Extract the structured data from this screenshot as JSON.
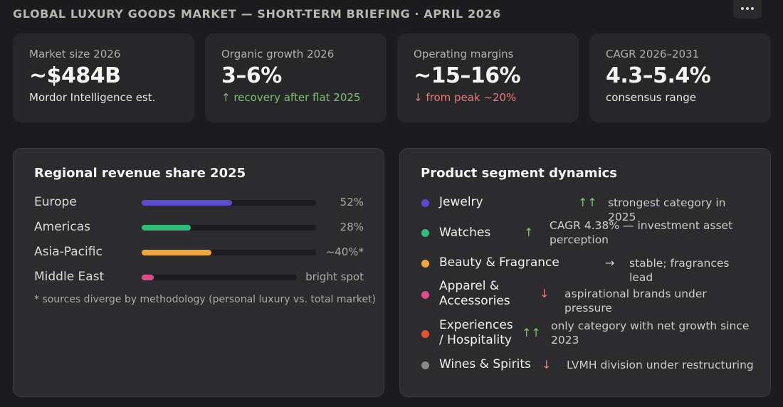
{
  "header": {
    "title": "GLOBAL LUXURY GOODS MARKET — SHORT-TERM BRIEFING · APRIL 2026",
    "more_icon": "ellipsis-icon"
  },
  "kpis": [
    {
      "label": "Market size 2026",
      "value": "~$484B",
      "note": "Mordor Intelligence est.",
      "trend": "none"
    },
    {
      "label": "Organic growth 2026",
      "value": "3–6%",
      "note": "↑ recovery after flat 2025",
      "trend": "up"
    },
    {
      "label": "Operating margins",
      "value": "~15–16%",
      "note": "↓ from peak ~20%",
      "trend": "down"
    },
    {
      "label": "CAGR 2026–2031",
      "value": "4.3–5.4%",
      "note": "consensus range",
      "trend": "none"
    }
  ],
  "regional": {
    "title": "Regional revenue share 2025",
    "rows": [
      {
        "name": "Europe",
        "value_label": "52%",
        "share": 0.52,
        "color": "#5b4bd0"
      },
      {
        "name": "Americas",
        "value_label": "28%",
        "share": 0.28,
        "color": "#2fbd7c"
      },
      {
        "name": "Asia-Pacific",
        "value_label": "~40%*",
        "share": 0.4,
        "color": "#f2a73a"
      },
      {
        "name": "Middle East",
        "value_label": "bright spot",
        "share": 0.08,
        "color": "#e24a8e"
      }
    ],
    "footnote": "* sources diverge by methodology (personal luxury vs. total market)"
  },
  "segments": {
    "title": "Product segment dynamics",
    "rows": [
      {
        "name": "Jewelry",
        "arrow": "↑↑",
        "trend": "up",
        "note": "strongest category in 2025",
        "color": "#5b4bd0"
      },
      {
        "name": "Watches",
        "arrow": "↑",
        "trend": "up",
        "note": "CAGR 4.38% — investment asset perception",
        "color": "#2fbd7c"
      },
      {
        "name": "Beauty & Fragrance",
        "arrow": "→",
        "trend": "flat",
        "note": "stable; fragrances lead",
        "color": "#f2a73a"
      },
      {
        "name": "Apparel & Accessories",
        "arrow": "↓",
        "trend": "down",
        "note": "aspirational brands under pressure",
        "color": "#e24a8e"
      },
      {
        "name": "Experiences / Hospitality",
        "arrow": "↑↑",
        "trend": "up",
        "note": "only category with net growth since 2023",
        "color": "#e0552f"
      },
      {
        "name": "Wines & Spirits",
        "arrow": "↓",
        "trend": "down",
        "note": "LVMH division under restructuring",
        "color": "#8c8a87"
      }
    ]
  }
}
